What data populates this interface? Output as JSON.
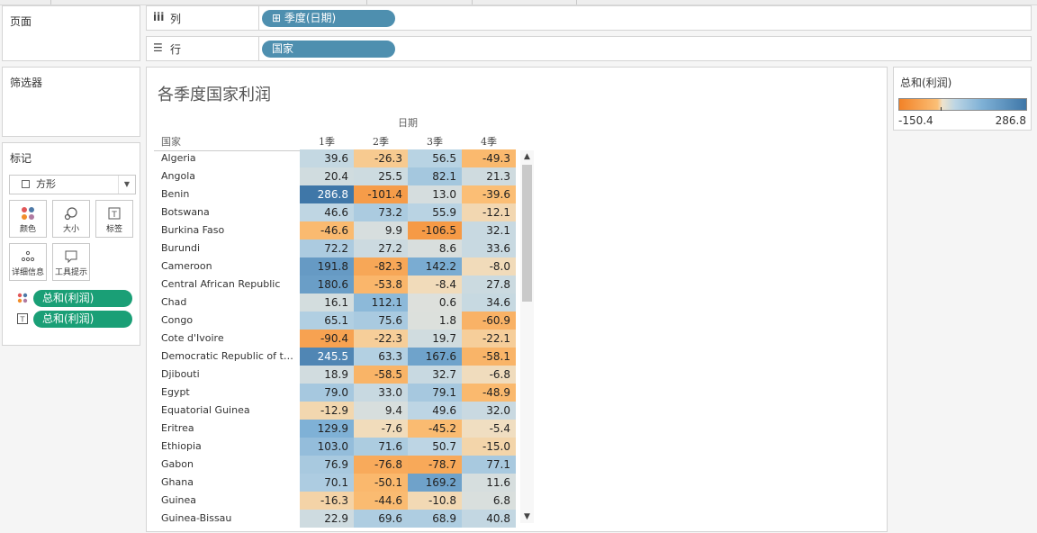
{
  "sheet": {
    "pages_title": "页面",
    "filters_title": "筛选器",
    "marks_title": "标记",
    "mark_type": "方形",
    "mark_buttons": [
      {
        "label": "颜色",
        "icon": "color-icon"
      },
      {
        "label": "大小",
        "icon": "size-icon"
      },
      {
        "label": "标签",
        "icon": "label-icon"
      },
      {
        "label": "详细信息",
        "icon": "detail-icon"
      },
      {
        "label": "工具提示",
        "icon": "tooltip-icon"
      }
    ],
    "mark_pills": [
      {
        "label": "总和(利润)",
        "icon": "color-marks-icon"
      },
      {
        "label": "总和(利润)",
        "icon": "text-marks-icon"
      }
    ]
  },
  "shelves": {
    "columns_label": "列",
    "columns_pill": "季度(日期)",
    "rows_label": "行",
    "rows_pill": "国家"
  },
  "view": {
    "title": "各季度国家利润",
    "date_header": "日期",
    "country_header": "国家"
  },
  "legend": {
    "title": "总和(利润)",
    "min": "-150.4",
    "max": "286.8"
  },
  "colors": {
    "pill_blue": "#4e8faf",
    "pill_green": "#1a9f76",
    "negative": "#f28227",
    "positive": "#3f77a8"
  },
  "chart_data": {
    "type": "heatmap",
    "title": "各季度国家利润",
    "x_header": "日期",
    "y_header": "国家",
    "columns": [
      "1季",
      "2季",
      "3季",
      "4季"
    ],
    "color_range": [
      -150.4,
      286.8
    ],
    "rows": [
      {
        "country": "Algeria",
        "values": [
          "39.6",
          "-26.3",
          "56.5",
          "-49.3"
        ]
      },
      {
        "country": "Angola",
        "values": [
          "20.4",
          "25.5",
          "82.1",
          "21.3"
        ]
      },
      {
        "country": "Benin",
        "values": [
          "286.8",
          "-101.4",
          "13.0",
          "-39.6"
        ]
      },
      {
        "country": "Botswana",
        "values": [
          "46.6",
          "73.2",
          "55.9",
          "-12.1"
        ]
      },
      {
        "country": "Burkina Faso",
        "values": [
          "-46.6",
          "9.9",
          "-106.5",
          "32.1"
        ]
      },
      {
        "country": "Burundi",
        "values": [
          "72.2",
          "27.2",
          "8.6",
          "33.6"
        ]
      },
      {
        "country": "Cameroon",
        "values": [
          "191.8",
          "-82.3",
          "142.2",
          "-8.0"
        ]
      },
      {
        "country": "Central African Republic",
        "values": [
          "180.6",
          "-53.8",
          "-8.4",
          "27.8"
        ]
      },
      {
        "country": "Chad",
        "values": [
          "16.1",
          "112.1",
          "0.6",
          "34.6"
        ]
      },
      {
        "country": "Congo",
        "values": [
          "65.1",
          "75.6",
          "1.8",
          "-60.9"
        ]
      },
      {
        "country": "Cote d'Ivoire",
        "values": [
          "-90.4",
          "-22.3",
          "19.7",
          "-22.1"
        ]
      },
      {
        "country": "Democratic Republic of th...",
        "values": [
          "245.5",
          "63.3",
          "167.6",
          "-58.1"
        ]
      },
      {
        "country": "Djibouti",
        "values": [
          "18.9",
          "-58.5",
          "32.7",
          "-6.8"
        ]
      },
      {
        "country": "Egypt",
        "values": [
          "79.0",
          "33.0",
          "79.1",
          "-48.9"
        ]
      },
      {
        "country": "Equatorial Guinea",
        "values": [
          "-12.9",
          "9.4",
          "49.6",
          "32.0"
        ]
      },
      {
        "country": "Eritrea",
        "values": [
          "129.9",
          "-7.6",
          "-45.2",
          "-5.4"
        ]
      },
      {
        "country": "Ethiopia",
        "values": [
          "103.0",
          "71.6",
          "50.7",
          "-15.0"
        ]
      },
      {
        "country": "Gabon",
        "values": [
          "76.9",
          "-76.8",
          "-78.7",
          "77.1"
        ]
      },
      {
        "country": "Ghana",
        "values": [
          "70.1",
          "-50.1",
          "169.2",
          "11.6"
        ]
      },
      {
        "country": "Guinea",
        "values": [
          "-16.3",
          "-44.6",
          "-10.8",
          "6.8"
        ]
      },
      {
        "country": "Guinea-Bissau",
        "values": [
          "22.9",
          "69.6",
          "68.9",
          "40.8"
        ]
      }
    ]
  }
}
